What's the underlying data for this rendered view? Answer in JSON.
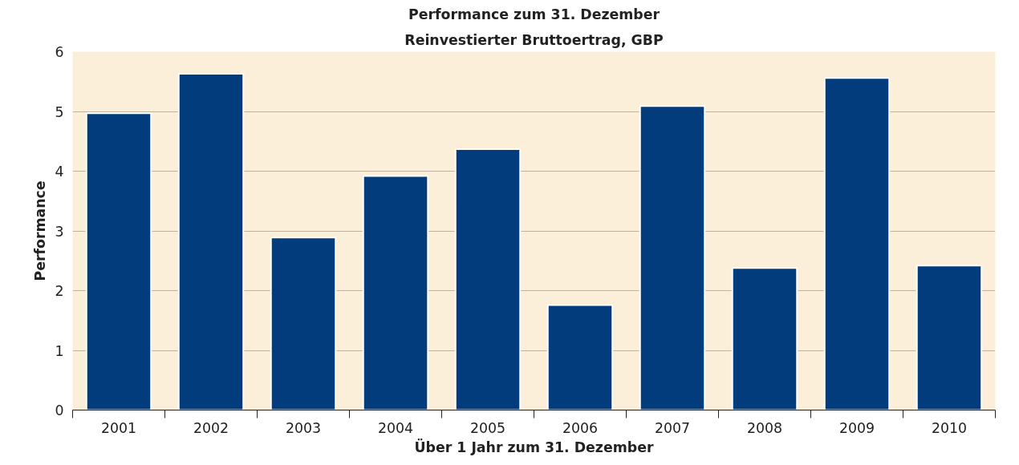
{
  "chart_data": {
    "type": "bar",
    "title": "Performance zum 31. Dezember",
    "subtitle": "Reinvestierter Bruttoertrag, GBP",
    "xlabel": "Über 1 Jahr zum 31. Dezember",
    "ylabel": "Performance",
    "categories": [
      "2001",
      "2002",
      "2003",
      "2004",
      "2005",
      "2006",
      "2007",
      "2008",
      "2009",
      "2010"
    ],
    "values": [
      4.97,
      5.63,
      2.89,
      3.92,
      4.37,
      1.76,
      5.09,
      2.38,
      5.56,
      2.42
    ],
    "color": "#023c7c",
    "ylim": [
      0,
      6
    ],
    "yticks": [
      0,
      1,
      2,
      3,
      4,
      5,
      6
    ],
    "grid": "y"
  }
}
